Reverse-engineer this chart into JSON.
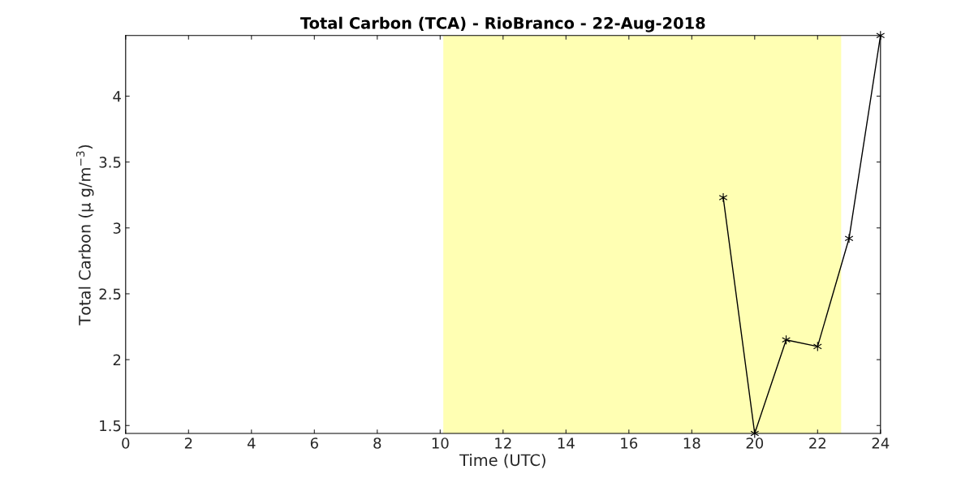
{
  "chart_data": {
    "type": "line",
    "title": "Total Carbon (TCA) - RioBranco - 22-Aug-2018",
    "xlabel": "Time (UTC)",
    "ylabel": "Total Carbon (μ g/m$^{−3}$)",
    "x": [
      19,
      20,
      21,
      22,
      23,
      24
    ],
    "series": [
      {
        "color": "#000000",
        "values": [
          3.23,
          1.44,
          2.15,
          2.1,
          2.92,
          4.46
        ]
      }
    ],
    "marker": "cross",
    "line_style": "solid",
    "grid": false,
    "legend": false,
    "xlim": [
      0,
      24
    ],
    "xticks": [
      0,
      2,
      4,
      6,
      8,
      10,
      12,
      14,
      16,
      18,
      20,
      22,
      24
    ],
    "ylim": [
      1.44,
      4.46
    ],
    "yticks": [
      1.5,
      2,
      2.5,
      3,
      3.5,
      4
    ],
    "bands": [
      {
        "axis": "x",
        "from": 10.1,
        "to": 22.75,
        "color": "#ffffb3"
      }
    ]
  }
}
